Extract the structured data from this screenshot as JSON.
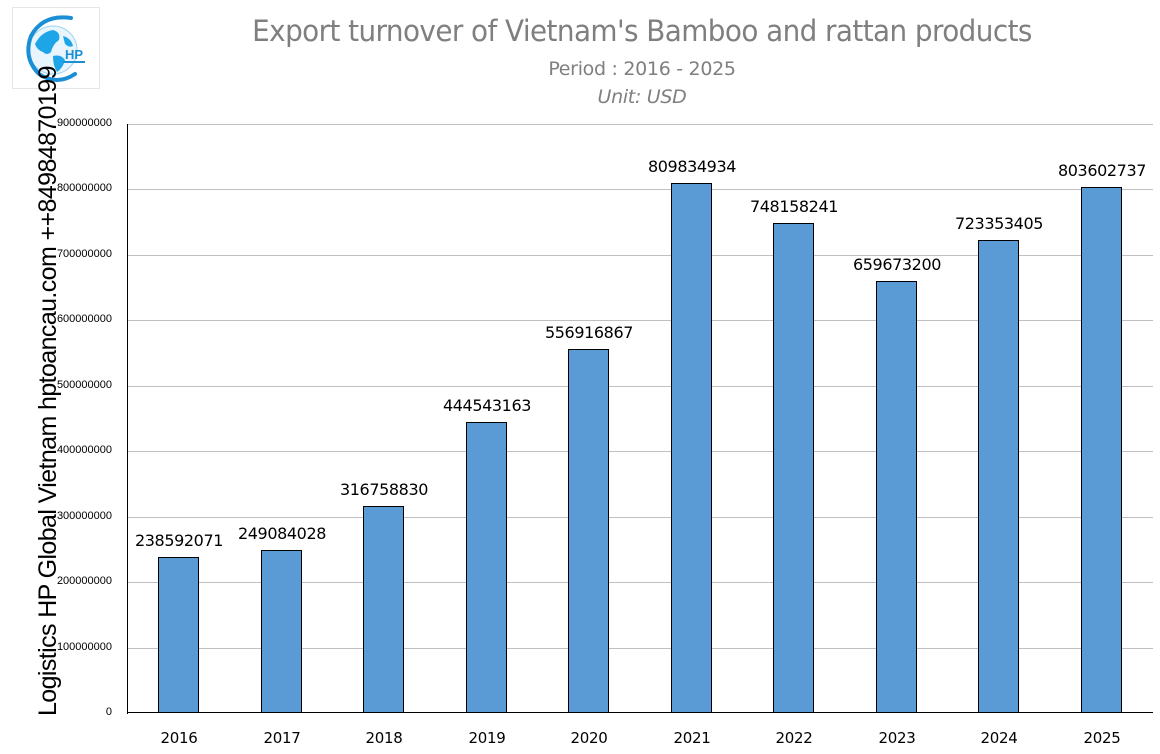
{
  "header": {
    "title": "Export turnover of Vietnam's Bamboo and rattan products",
    "subtitle": "Period : 2016 - 2025",
    "unit": "Unit: USD"
  },
  "logo": {
    "icon": "globe-hp-logo-icon",
    "text": "HP",
    "color": "#1e9be0"
  },
  "side_label": "Logistics HP Global Vietnam hptoancau.com ++84984870199",
  "chart_data": {
    "type": "bar",
    "title": "Export turnover of Vietnam's Bamboo and rattan products",
    "subtitle": "Period : 2016 - 2025",
    "unit": "Unit: USD",
    "xlabel": "",
    "ylabel": "Logistics HP Global Vietnam hptoancau.com ++84984870199",
    "categories": [
      "2016",
      "2017",
      "2018",
      "2019",
      "2020",
      "2021",
      "2022",
      "2023",
      "2024",
      "2025"
    ],
    "values": [
      238592071,
      249084028,
      316758830,
      444543163,
      556916867,
      809834934,
      748158241,
      659673200,
      723353405,
      803602737
    ],
    "value_labels": [
      "238592071",
      "249084028",
      "316758830",
      "444543163",
      "556916867",
      "809834934",
      "748158241",
      "659673200",
      "723353405",
      "803602737"
    ],
    "ylim": [
      0,
      900000000
    ],
    "yticks": [
      "0",
      "100000000",
      "200000000",
      "300000000",
      "400000000",
      "500000000",
      "600000000",
      "700000000",
      "800000000",
      "900000000"
    ],
    "grid": true,
    "legend": "none",
    "bar_color": "#5b9bd5",
    "bar_edge_color": "#000000"
  }
}
